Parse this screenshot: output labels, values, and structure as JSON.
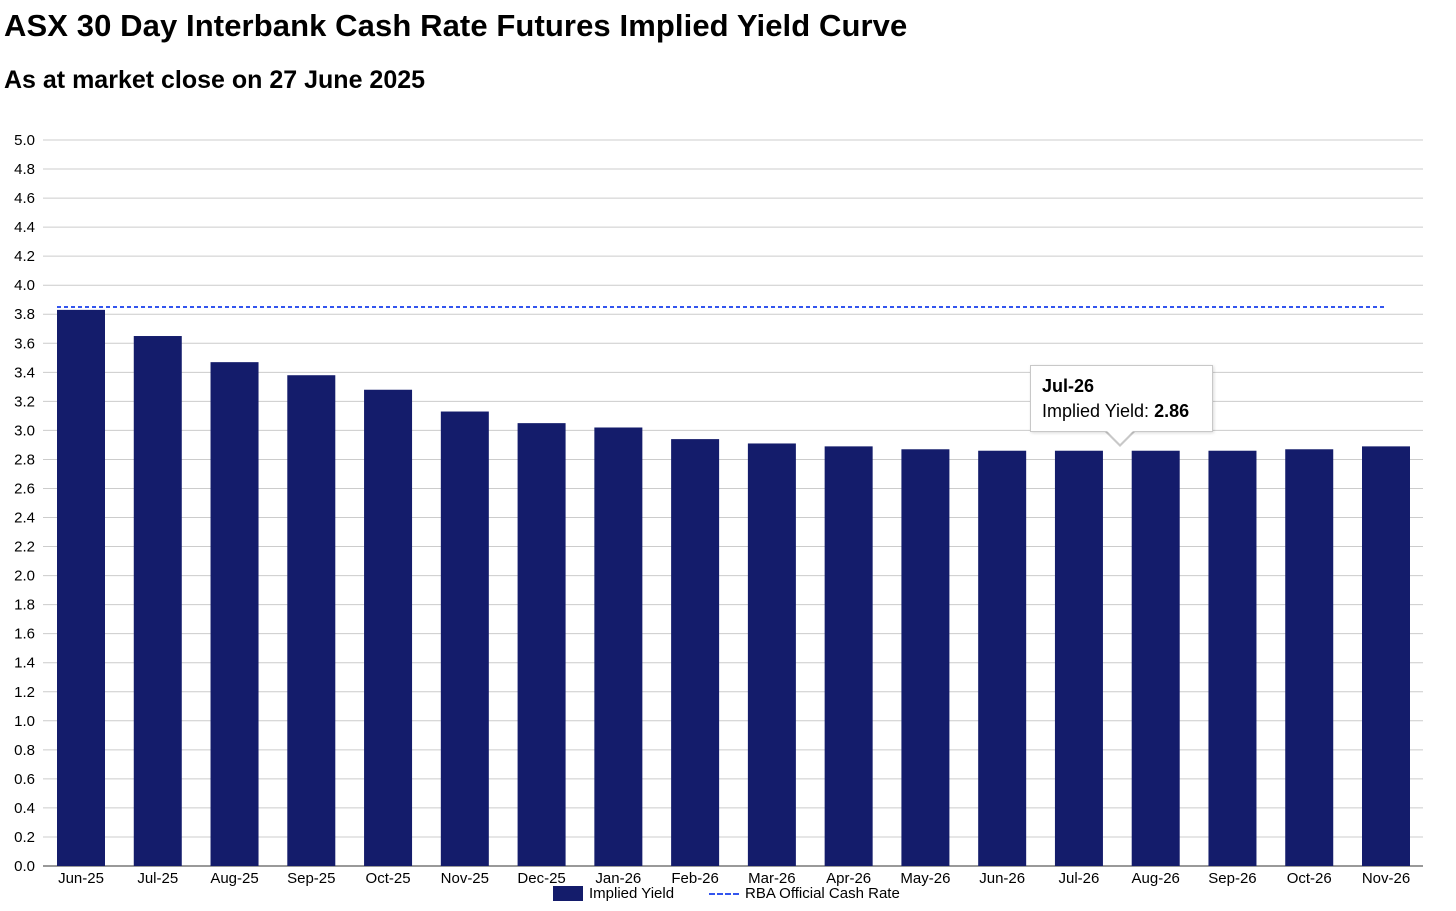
{
  "chart_data": {
    "type": "bar",
    "title": "ASX 30 Day Interbank Cash Rate Futures Implied Yield Curve",
    "subtitle": "As at market close on 27 June 2025",
    "categories": [
      "Jun-25",
      "Jul-25",
      "Aug-25",
      "Sep-25",
      "Oct-25",
      "Nov-25",
      "Dec-25",
      "Jan-26",
      "Feb-26",
      "Mar-26",
      "Apr-26",
      "May-26",
      "Jun-26",
      "Jul-26",
      "Aug-26",
      "Sep-26",
      "Oct-26",
      "Nov-26"
    ],
    "series": [
      {
        "name": "Implied Yield",
        "type": "bar",
        "color": "#141c6b",
        "values": [
          3.83,
          3.65,
          3.47,
          3.38,
          3.28,
          3.13,
          3.05,
          3.02,
          2.94,
          2.91,
          2.89,
          2.87,
          2.86,
          2.86,
          2.86,
          2.86,
          2.87,
          2.89
        ]
      },
      {
        "name": "RBA Official Cash Rate",
        "type": "line",
        "style": "dashed",
        "color": "#3355ee",
        "value": 3.85
      }
    ],
    "xlabel": "",
    "ylabel": "",
    "ylim": [
      0,
      5.0
    ],
    "yticks": [
      "0.0",
      "0.2",
      "0.4",
      "0.6",
      "0.8",
      "1.0",
      "1.2",
      "1.4",
      "1.6",
      "1.8",
      "2.0",
      "2.2",
      "2.4",
      "2.6",
      "2.8",
      "3.0",
      "3.2",
      "3.4",
      "3.6",
      "3.8",
      "4.0",
      "4.2",
      "4.4",
      "4.6",
      "4.8",
      "5.0"
    ],
    "grid": true,
    "legend_position": "bottom",
    "tooltip": {
      "category": "Jul-26",
      "label": "Implied Yield:",
      "value": "2.86"
    }
  }
}
